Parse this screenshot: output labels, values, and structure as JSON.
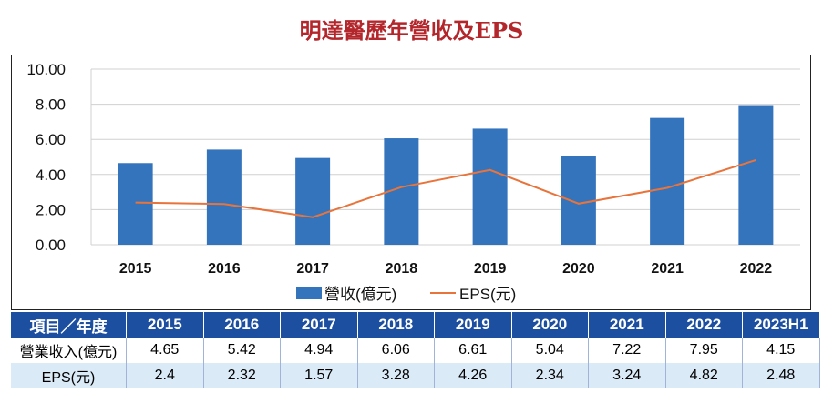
{
  "title": "明達醫歷年營收及EPS",
  "chart_data": {
    "type": "bar+line",
    "title": "明達醫歷年營收及EPS",
    "categories": [
      "2015",
      "2016",
      "2017",
      "2018",
      "2019",
      "2020",
      "2021",
      "2022"
    ],
    "series": [
      {
        "name": "營收(億元)",
        "type": "bar",
        "color": "#3474bd",
        "values": [
          4.65,
          5.42,
          4.94,
          6.06,
          6.61,
          5.04,
          7.22,
          7.95
        ]
      },
      {
        "name": "EPS(元)",
        "type": "line",
        "color": "#e8743b",
        "values": [
          2.4,
          2.32,
          1.57,
          3.28,
          4.26,
          2.34,
          3.24,
          4.82
        ]
      }
    ],
    "yticks": [
      "0.00",
      "2.00",
      "4.00",
      "6.00",
      "8.00",
      "10.00"
    ],
    "ylim": [
      0,
      10
    ],
    "grid": true,
    "legend": "bottom"
  },
  "table": {
    "header": [
      "項目／年度",
      "2015",
      "2016",
      "2017",
      "2018",
      "2019",
      "2020",
      "2021",
      "2022",
      "2023H1"
    ],
    "rows": [
      [
        "營業收入(億元)",
        "4.65",
        "5.42",
        "4.94",
        "6.06",
        "6.61",
        "5.04",
        "7.22",
        "7.95",
        "4.15"
      ],
      [
        "EPS(元)",
        "2.4",
        "2.32",
        "1.57",
        "3.28",
        "4.26",
        "2.34",
        "3.24",
        "4.82",
        "2.48"
      ]
    ]
  }
}
